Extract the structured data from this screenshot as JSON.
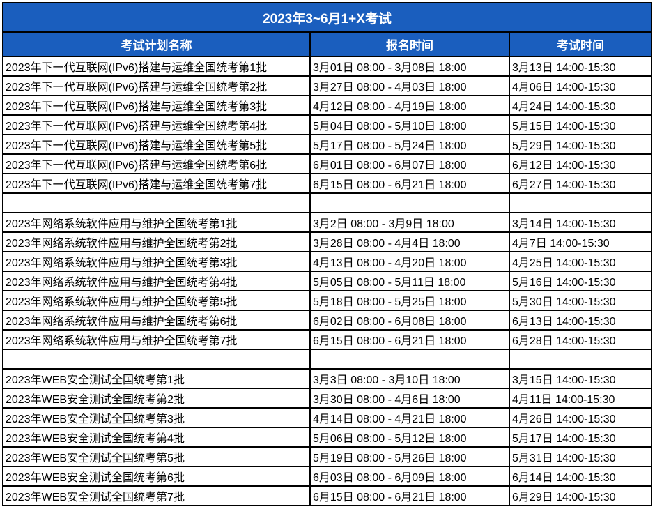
{
  "table": {
    "title": "2023年3~6月1+X考试",
    "columns": [
      "考试计划名称",
      "报名时间",
      "考试时间"
    ],
    "rows": [
      [
        "2023年下一代互联网(IPv6)搭建与运维全国统考第1批",
        "3月01日 08:00 - 3月08日 18:00",
        "3月13日 14:00-15:30"
      ],
      [
        "2023年下一代互联网(IPv6)搭建与运维全国统考第2批",
        "3月27日 08:00 - 4月03日 18:00",
        "4月06日 14:00-15:30"
      ],
      [
        "2023年下一代互联网(IPv6)搭建与运维全国统考第3批",
        "4月12日 08:00 - 4月19日 18:00",
        "4月24日 14:00-15:30"
      ],
      [
        "2023年下一代互联网(IPv6)搭建与运维全国统考第4批",
        "5月04日 08:00 - 5月10日 18:00",
        "5月15日 14:00-15:30"
      ],
      [
        "2023年下一代互联网(IPv6)搭建与运维全国统考第5批",
        "5月17日 08:00 - 5月24日 18:00",
        "5月29日 14:00-15:30"
      ],
      [
        "2023年下一代互联网(IPv6)搭建与运维全国统考第6批",
        "6月01日 08:00 - 6月07日 18:00",
        "6月12日 14:00-15:30"
      ],
      [
        "2023年下一代互联网(IPv6)搭建与运维全国统考第7批",
        "6月15日 08:00 - 6月21日 18:00",
        "6月27日 14:00-15:30"
      ],
      [
        "",
        "",
        ""
      ],
      [
        "2023年网络系统软件应用与维护全国统考第1批",
        "3月2日 08:00 - 3月9日 18:00",
        "3月14日 14:00-15:30"
      ],
      [
        "2023年网络系统软件应用与维护全国统考第2批",
        "3月28日 08:00 - 4月4日 18:00",
        "4月7日 14:00-15:30"
      ],
      [
        "2023年网络系统软件应用与维护全国统考第3批",
        "4月13日 08:00 - 4月20日 18:00",
        "4月25日 14:00-15:30"
      ],
      [
        "2023年网络系统软件应用与维护全国统考第4批",
        "5月05日 08:00 - 5月11日 18:00",
        "5月16日 14:00-15:30"
      ],
      [
        "2023年网络系统软件应用与维护全国统考第5批",
        "5月18日 08:00 - 5月25日 18:00",
        "5月30日 14:00-15:30"
      ],
      [
        "2023年网络系统软件应用与维护全国统考第6批",
        "6月02日 08:00 - 6月08日 18:00",
        "6月13日 14:00-15:30"
      ],
      [
        "2023年网络系统软件应用与维护全国统考第7批",
        "6月15日 08:00 - 6月21日 18:00",
        "6月28日 14:00-15:30"
      ],
      [
        "",
        "",
        ""
      ],
      [
        "2023年WEB安全测试全国统考第1批",
        "3月3日 08:00 - 3月10日 18:00",
        "3月15日 14:00-15:30"
      ],
      [
        "2023年WEB安全测试全国统考第2批",
        "3月30日 08:00 - 4月6日 18:00",
        "4月11日 14:00-15:30"
      ],
      [
        "2023年WEB安全测试全国统考第3批",
        "4月14日 08:00 - 4月21日 18:00",
        "4月26日 14:00-15:30"
      ],
      [
        "2023年WEB安全测试全国统考第4批",
        "5月06日 08:00 - 5月12日 18:00",
        "5月17日 14:00-15:30"
      ],
      [
        "2023年WEB安全测试全国统考第5批",
        "5月19日 08:00 - 5月26日 18:00",
        "5月31日 14:00-15:30"
      ],
      [
        "2023年WEB安全测试全国统考第6批",
        "6月03日 08:00 - 6月09日 18:00",
        "6月14日 14:00-15:30"
      ],
      [
        "2023年WEB安全测试全国统考第7批",
        "6月15日 08:00 - 6月21日 18:00",
        "6月29日 14:00-15:30"
      ]
    ]
  },
  "colors": {
    "header_bg": "#1A5EBE",
    "header_text": "#FFFFFF",
    "border": "#000000",
    "cell_bg": "#FFFFFF",
    "cell_text": "#000000"
  }
}
